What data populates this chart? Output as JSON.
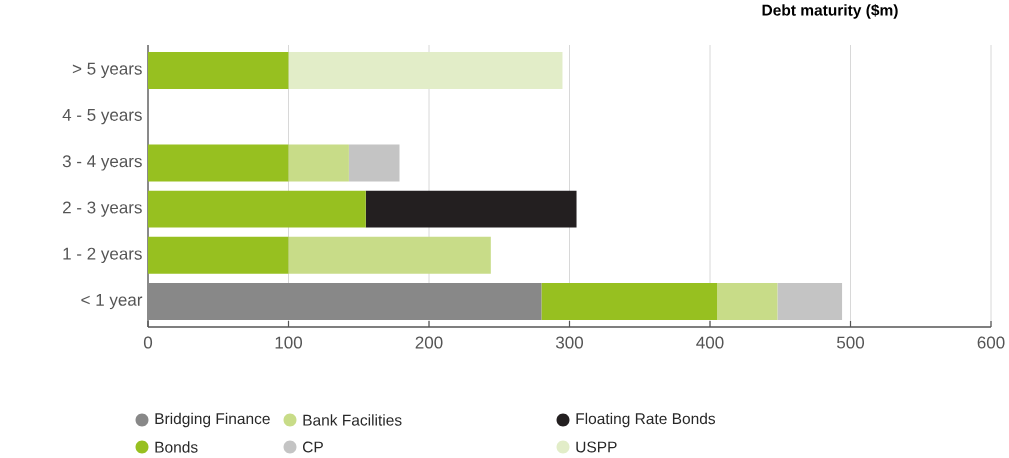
{
  "chart_data": {
    "type": "bar",
    "orientation": "horizontal",
    "stacked": true,
    "title": "Debt maturity ($m)",
    "categories": [
      "> 5 years",
      "4 - 5 years",
      "3 - 4 years",
      "2 - 3 years",
      "1 - 2 years",
      "< 1 year"
    ],
    "series": [
      {
        "name": "Bridging Finance",
        "color": "#888888",
        "values": [
          null,
          null,
          null,
          null,
          null,
          280
        ]
      },
      {
        "name": "Bonds",
        "color": "#97c020",
        "values": [
          100,
          null,
          100,
          155,
          100,
          125
        ]
      },
      {
        "name": "Bank Facilities",
        "color": "#c8dc88",
        "values": [
          null,
          null,
          43,
          null,
          144,
          43
        ]
      },
      {
        "name": "CP",
        "color": "#c4c4c4",
        "values": [
          null,
          null,
          36,
          null,
          null,
          46
        ]
      },
      {
        "name": "Floating Rate Bonds",
        "color": "#231f20",
        "values": [
          null,
          null,
          null,
          150,
          null,
          null
        ]
      },
      {
        "name": "USPP",
        "color": "#e2edc8",
        "values": [
          195,
          null,
          null,
          null,
          null,
          null
        ]
      }
    ],
    "xlim": [
      0,
      600
    ],
    "xticks": [
      0,
      100,
      200,
      300,
      400,
      500,
      600
    ],
    "grid": "x",
    "legend": "bottom"
  }
}
